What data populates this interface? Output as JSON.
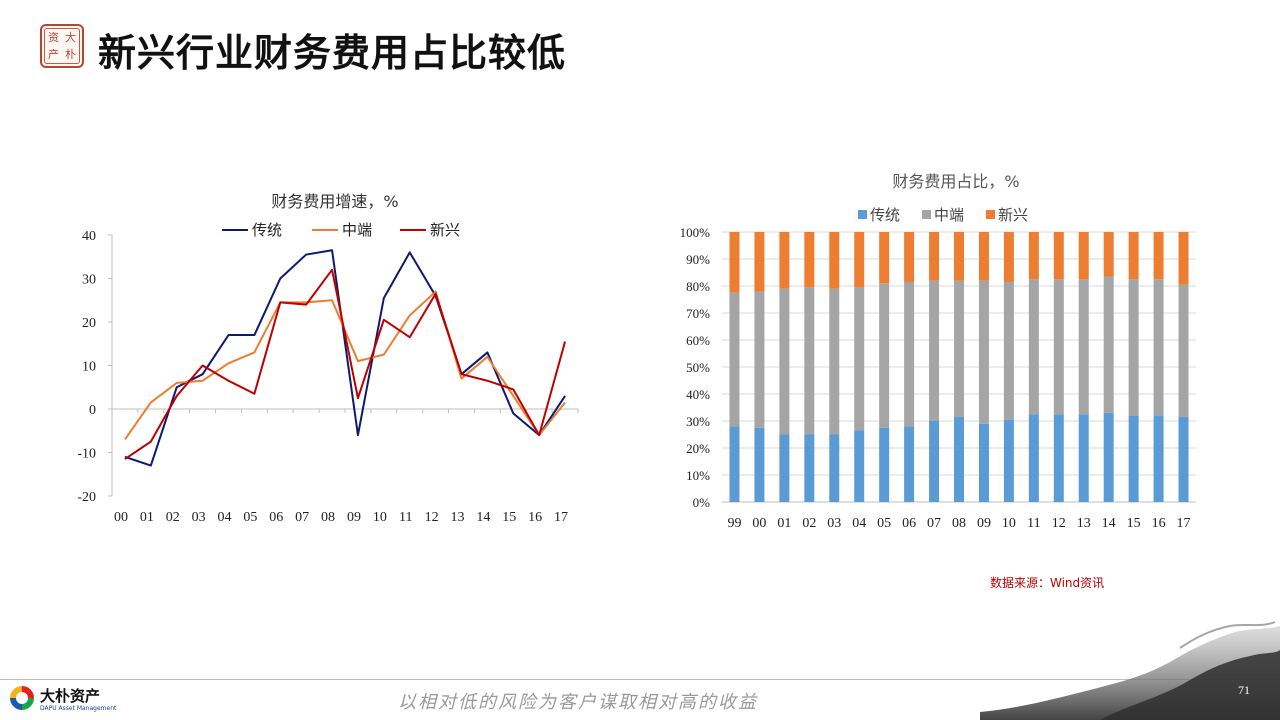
{
  "header": {
    "title": "新兴行业财务费用占比较低",
    "seal_chars": [
      "大",
      "朴",
      "资",
      "产"
    ]
  },
  "chart_data": [
    {
      "type": "line",
      "title": "财务费用增速，%",
      "x": [
        "00",
        "01",
        "02",
        "03",
        "04",
        "05",
        "06",
        "07",
        "08",
        "09",
        "10",
        "11",
        "12",
        "13",
        "14",
        "15",
        "16",
        "17"
      ],
      "ylim": [
        -20,
        40
      ],
      "yticks": [
        -20,
        -10,
        0,
        10,
        20,
        30,
        40
      ],
      "legend_position": "top",
      "series": [
        {
          "name": "传统",
          "color": "#0d1a6e",
          "values": [
            -11,
            -13,
            5,
            8,
            17,
            17,
            30,
            35.5,
            36.5,
            -6,
            25.5,
            36,
            26,
            8,
            13,
            -1,
            -6,
            3
          ]
        },
        {
          "name": "中端",
          "color": "#ed7d31",
          "values": [
            -7,
            1.5,
            6,
            6.5,
            10.5,
            13,
            24.5,
            24.5,
            25,
            11,
            12.5,
            21.5,
            27,
            7,
            12,
            3,
            -6,
            1.5
          ]
        },
        {
          "name": "新兴",
          "color": "#c00000",
          "values": [
            -11.5,
            -7.5,
            3,
            10,
            6.5,
            3.5,
            24.5,
            24,
            32,
            2.5,
            20.5,
            16.5,
            26.5,
            8,
            6.5,
            4.5,
            -6,
            15.5
          ]
        }
      ]
    },
    {
      "type": "bar",
      "stacked": true,
      "title": "财务费用占比，%",
      "categories": [
        "99",
        "00",
        "01",
        "02",
        "03",
        "04",
        "05",
        "06",
        "07",
        "08",
        "09",
        "10",
        "11",
        "12",
        "13",
        "14",
        "15",
        "16",
        "17"
      ],
      "ylim": [
        0,
        100
      ],
      "yticks": [
        "0%",
        "10%",
        "20%",
        "30%",
        "40%",
        "50%",
        "60%",
        "70%",
        "80%",
        "90%",
        "100%"
      ],
      "legend_position": "top",
      "series": [
        {
          "name": "传统",
          "color": "#5b9bd5",
          "values": [
            28,
            27.5,
            25,
            25,
            25,
            26.5,
            27.5,
            28,
            30,
            31.5,
            29,
            30.5,
            32.5,
            32.5,
            32.5,
            33,
            32,
            32,
            31.5
          ]
        },
        {
          "name": "中端",
          "color": "#a5a5a5",
          "values": [
            49.5,
            50.5,
            54,
            54.5,
            54,
            53,
            53.5,
            53.5,
            52,
            50.5,
            53,
            51,
            50,
            50,
            50,
            50.5,
            50.5,
            50.5,
            49
          ]
        },
        {
          "name": "新兴",
          "color": "#ed7d31",
          "values": [
            22.5,
            22,
            21,
            20.5,
            21,
            20.5,
            19,
            18.5,
            18,
            18,
            18,
            18.5,
            17.5,
            17.5,
            17.5,
            16.5,
            17.5,
            17.5,
            19.5
          ]
        }
      ]
    }
  ],
  "source": "数据来源：Wind资讯",
  "footer": {
    "logo_cn": "大朴资产",
    "logo_en": "DAPU Asset Management",
    "slogan": "以相对低的风险为客户谋取相对高的收益",
    "page_number": "71"
  }
}
